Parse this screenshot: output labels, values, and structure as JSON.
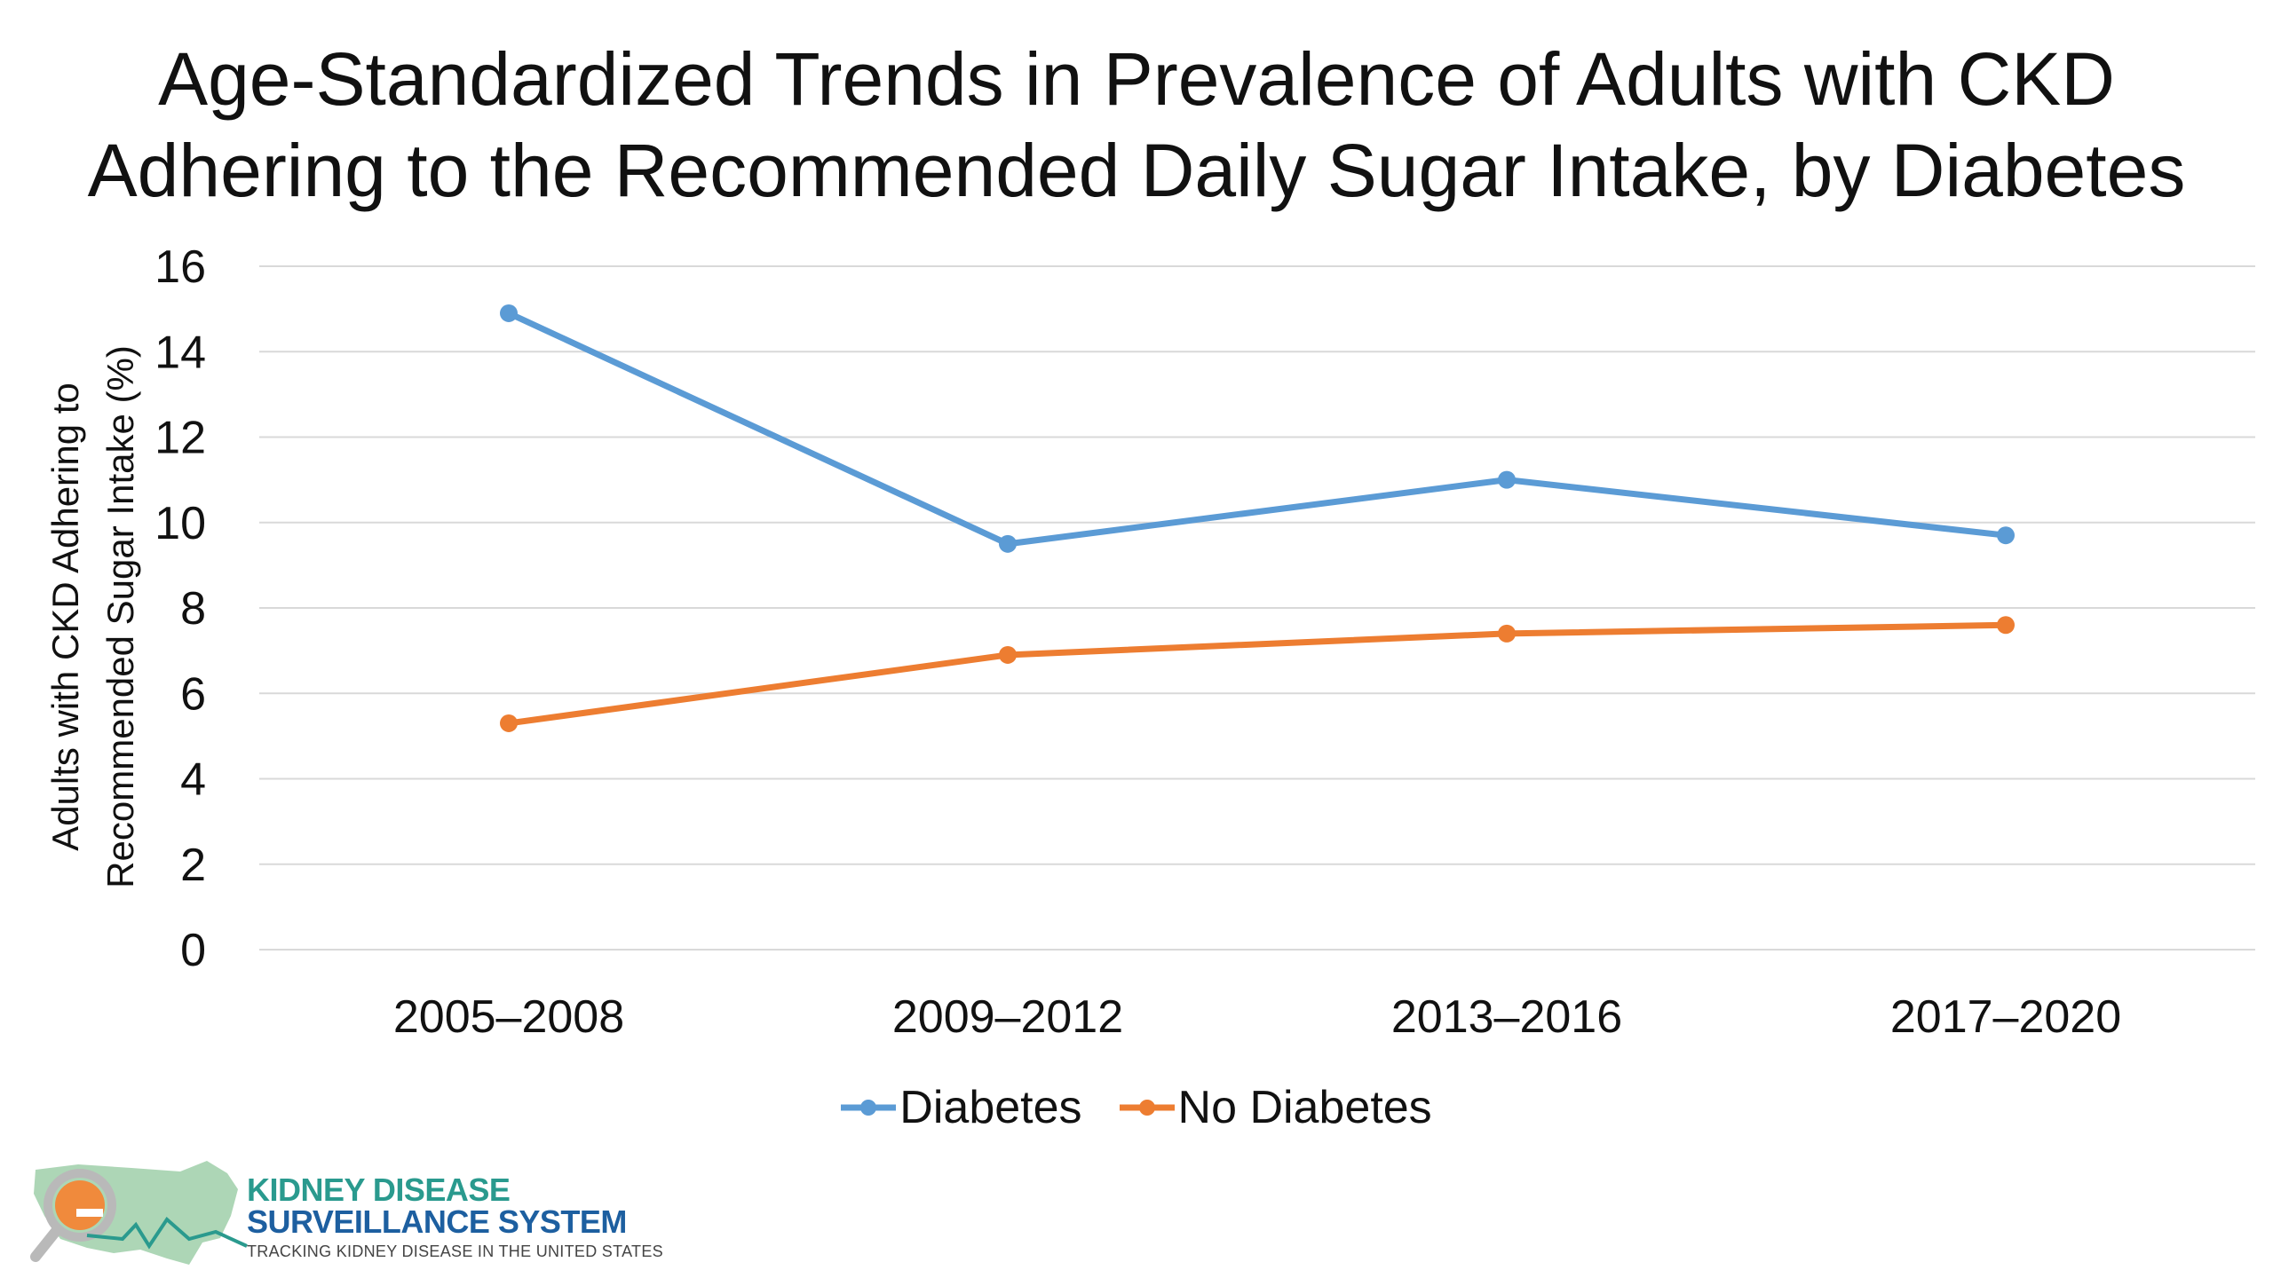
{
  "chart_data": {
    "type": "line",
    "title_lines": [
      "Age-Standardized Trends in Prevalence of Adults with CKD",
      "Adhering to the Recommended Daily Sugar Intake, by Diabetes"
    ],
    "ylabel_lines": [
      "Adults with CKD Adhering to",
      "Recommended Sugar Intake (%)"
    ],
    "xlabel": "",
    "categories": [
      "2005–2008",
      "2009–2012",
      "2013–2016",
      "2017–2020"
    ],
    "y_ticks": [
      0,
      2,
      4,
      6,
      8,
      10,
      12,
      14,
      16
    ],
    "ylim": [
      0,
      16
    ],
    "grid": "horizontal",
    "legend_position": "bottom",
    "series": [
      {
        "name": "Diabetes",
        "color": "#5b9bd5",
        "values": [
          14.9,
          9.5,
          11.0,
          9.7
        ]
      },
      {
        "name": "No Diabetes",
        "color": "#ed7d31",
        "values": [
          5.3,
          6.9,
          7.4,
          7.6
        ]
      }
    ]
  },
  "logo": {
    "line1": "KIDNEY DISEASE",
    "line2": "SURVEILLANCE SYSTEM",
    "tagline": "TRACKING KIDNEY DISEASE IN THE UNITED STATES",
    "icon": "usa-map-magnifier-icon"
  }
}
